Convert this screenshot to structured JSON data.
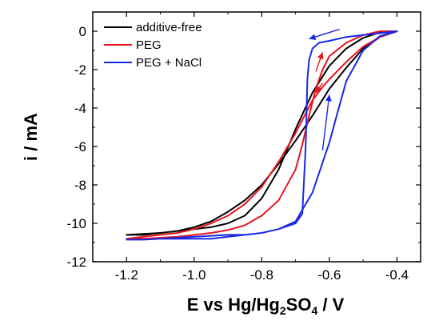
{
  "chart_data": {
    "type": "line",
    "title": "",
    "xlabel": {
      "prefix": "E vs Hg/Hg",
      "sub1": "2",
      "mid": "SO",
      "sub2": "4",
      "suffix": " / V"
    },
    "ylabel": "i / mA",
    "xlim": [
      -1.3,
      -0.33
    ],
    "ylim": [
      -12,
      1
    ],
    "x_ticks": [
      -1.2,
      -1.0,
      -0.8,
      -0.6,
      -0.4
    ],
    "x_tick_labels": [
      "-1.2",
      "-1.0",
      "-0.8",
      "-0.6",
      "-0.4"
    ],
    "y_ticks": [
      0,
      -2,
      -4,
      -6,
      -8,
      -10,
      -12
    ],
    "y_tick_labels": [
      "0",
      "-2",
      "-4",
      "-6",
      "-8",
      "-10",
      "-12"
    ],
    "grid": false,
    "legend_position": "top-left",
    "series": [
      {
        "name": "additive-free",
        "color": "#000000",
        "x": [
          -0.4,
          -0.45,
          -0.5,
          -0.55,
          -0.6,
          -0.65,
          -0.7,
          -0.75,
          -0.8,
          -0.85,
          -0.9,
          -0.95,
          -1.0,
          -1.05,
          -1.1,
          -1.15,
          -1.2,
          -1.2,
          -1.15,
          -1.1,
          -1.05,
          -1.0,
          -0.95,
          -0.9,
          -0.85,
          -0.8,
          -0.75,
          -0.7,
          -0.65,
          -0.6,
          -0.55,
          -0.5,
          -0.45,
          -0.4
        ],
        "y": [
          0.0,
          -0.3,
          -0.9,
          -1.9,
          -3.0,
          -4.4,
          -5.7,
          -6.9,
          -8.0,
          -8.8,
          -9.4,
          -9.9,
          -10.2,
          -10.4,
          -10.5,
          -10.55,
          -10.6,
          -10.6,
          -10.6,
          -10.5,
          -10.4,
          -10.3,
          -10.2,
          -10.0,
          -9.6,
          -8.7,
          -7.2,
          -5.1,
          -3.2,
          -1.8,
          -0.9,
          -0.35,
          -0.05,
          0.0
        ]
      },
      {
        "name": "PEG",
        "color": "#e8141c",
        "x": [
          -0.4,
          -0.45,
          -0.5,
          -0.55,
          -0.6,
          -0.62,
          -0.65,
          -0.7,
          -0.75,
          -0.8,
          -0.85,
          -0.9,
          -0.95,
          -1.0,
          -1.05,
          -1.1,
          -1.15,
          -1.2,
          -1.2,
          -1.15,
          -1.1,
          -1.05,
          -1.0,
          -0.95,
          -0.9,
          -0.85,
          -0.8,
          -0.75,
          -0.7,
          -0.68,
          -0.66,
          -0.64,
          -0.62,
          -0.6,
          -0.55,
          -0.5,
          -0.45,
          -0.4
        ],
        "y": [
          0.0,
          -0.3,
          -0.8,
          -1.6,
          -2.5,
          -2.9,
          -3.6,
          -5.3,
          -6.8,
          -8.1,
          -9.0,
          -9.6,
          -10.0,
          -10.3,
          -10.5,
          -10.6,
          -10.7,
          -10.8,
          -10.8,
          -10.8,
          -10.75,
          -10.7,
          -10.6,
          -10.5,
          -10.35,
          -10.1,
          -9.6,
          -8.8,
          -7.2,
          -5.9,
          -4.4,
          -3.0,
          -2.0,
          -1.3,
          -0.6,
          -0.2,
          0.0,
          0.0
        ]
      },
      {
        "name": "PEG + NaCl",
        "color": "#1828e8",
        "x": [
          -0.4,
          -0.45,
          -0.5,
          -0.55,
          -0.6,
          -0.63,
          -0.65,
          -0.66,
          -0.665,
          -0.67,
          -0.68,
          -0.7,
          -0.75,
          -0.8,
          -0.85,
          -0.9,
          -0.95,
          -1.0,
          -1.05,
          -1.1,
          -1.15,
          -1.2,
          -1.2,
          -1.15,
          -1.1,
          -1.05,
          -1.0,
          -0.95,
          -0.9,
          -0.85,
          -0.8,
          -0.75,
          -0.7,
          -0.65,
          -0.6,
          -0.58,
          -0.55,
          -0.5,
          -0.45,
          -0.4
        ],
        "y": [
          0.0,
          -0.1,
          -0.2,
          -0.3,
          -0.5,
          -0.6,
          -0.9,
          -1.5,
          -2.5,
          -6.0,
          -9.5,
          -10.0,
          -10.3,
          -10.5,
          -10.6,
          -10.7,
          -10.8,
          -10.8,
          -10.8,
          -10.8,
          -10.85,
          -10.85,
          -10.85,
          -10.85,
          -10.8,
          -10.75,
          -10.7,
          -10.65,
          -10.6,
          -10.6,
          -10.5,
          -10.3,
          -9.9,
          -8.4,
          -5.8,
          -4.5,
          -2.6,
          -1.0,
          -0.25,
          0.0
        ]
      }
    ],
    "annotations": [
      {
        "kind": "arrow",
        "color": "#1828e8",
        "x1": -0.57,
        "y1": 0.1,
        "x2": -0.66,
        "y2": -0.4
      },
      {
        "kind": "arrow",
        "color": "#e8141c",
        "x1": -0.64,
        "y1": -2.1,
        "x2": -0.62,
        "y2": -1.1
      },
      {
        "kind": "arrow",
        "color": "#e8141c",
        "x1": -0.62,
        "y1": -2.7,
        "x2": -0.64,
        "y2": -3.2
      },
      {
        "kind": "arrow",
        "color": "#1828e8",
        "x1": -0.62,
        "y1": -6.2,
        "x2": -0.6,
        "y2": -3.3
      }
    ]
  }
}
